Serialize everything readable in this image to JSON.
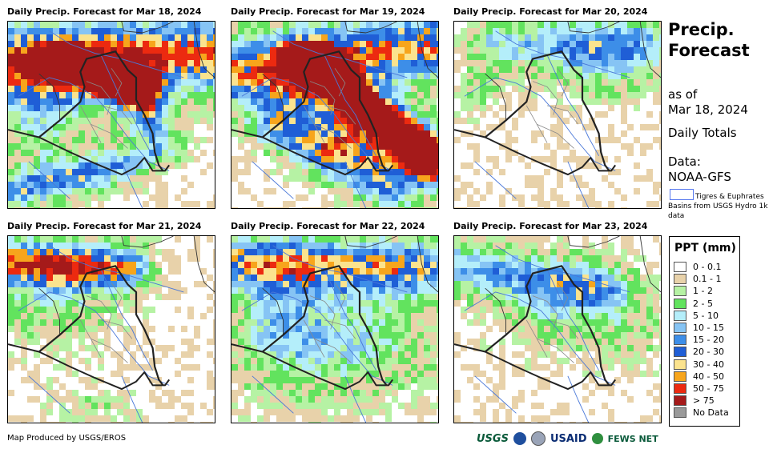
{
  "panels": [
    {
      "title": "Daily Precip. Forecast for Mar 18, 2024",
      "pattern": "heavy-north-west"
    },
    {
      "title": "Daily Precip. Forecast for Mar 19, 2024",
      "pattern": "heavy-east"
    },
    {
      "title": "Daily Precip. Forecast for Mar 20, 2024",
      "pattern": "light-north"
    },
    {
      "title": "Daily Precip. Forecast for Mar 21, 2024",
      "pattern": "moderate-northwest"
    },
    {
      "title": "Daily Precip. Forecast for Mar 22, 2024",
      "pattern": "moderate-north-central"
    },
    {
      "title": "Daily Precip. Forecast for Mar 23, 2024",
      "pattern": "light-north-scattered"
    }
  ],
  "side": {
    "title_line1": "Precip.",
    "title_line2": "Forecast",
    "as_of_line1": "as of",
    "as_of_line2": "Mar 18, 2024",
    "totals": "Daily Totals",
    "data_line1": "Data:",
    "data_line2": "NOAA-GFS",
    "basin_note": "Tigres & Euphrates Basins from USGS Hydro 1k data"
  },
  "legend": {
    "title": "PPT (mm)",
    "items": [
      {
        "label": "0 - 0.1",
        "color": "#ffffff"
      },
      {
        "label": "0.1 - 1",
        "color": "#e8d2aa"
      },
      {
        "label": "1 - 2",
        "color": "#b6f2a4"
      },
      {
        "label": "2 - 5",
        "color": "#62e35e"
      },
      {
        "label": "5 - 10",
        "color": "#b4eefa"
      },
      {
        "label": "10 - 15",
        "color": "#86c4f4"
      },
      {
        "label": "15 - 20",
        "color": "#3d8ee8"
      },
      {
        "label": "20 - 30",
        "color": "#1f5ed6"
      },
      {
        "label": "30 - 40",
        "color": "#fbe38e"
      },
      {
        "label": "40 - 50",
        "color": "#f7a51c"
      },
      {
        "label": "50 - 75",
        "color": "#ec2a10"
      },
      {
        "label": "> 75",
        "color": "#a51a1a"
      },
      {
        "label": "No Data",
        "color": "#9a9a9a"
      }
    ]
  },
  "footer": {
    "credit": "Map Produced by USGS/EROS",
    "logo_usgs": "USGS",
    "logo_usaid": "USAID",
    "logo_fews": "FEWS NET"
  }
}
